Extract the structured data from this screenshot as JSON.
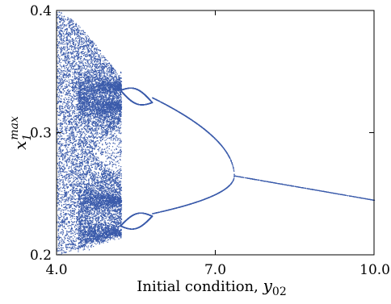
{
  "chart_data": {
    "type": "scatter",
    "title": "",
    "xlabel": {
      "text": "Initial condition, ",
      "symbol": "y",
      "subscript": "02"
    },
    "ylabel": {
      "symbol": "x",
      "subscript": "1",
      "superscript": "max"
    },
    "xlim": [
      4.0,
      10.0
    ],
    "ylim": [
      0.2,
      0.4
    ],
    "x_ticks": [
      4.0,
      7.0,
      10.0
    ],
    "x_tick_labels": [
      "4.0",
      "7.0",
      "10.0"
    ],
    "y_ticks": [
      0.2,
      0.3,
      0.4
    ],
    "y_tick_labels": [
      "0.2",
      "0.3",
      "0.4"
    ],
    "grid": false,
    "legend": "none",
    "marker_color": "#3b5bab",
    "regimes": [
      {
        "name": "chaotic",
        "x_range": [
          4.0,
          5.2
        ],
        "y_range": [
          0.2,
          0.4
        ]
      },
      {
        "name": "period-4",
        "x_range": [
          5.2,
          5.8
        ]
      },
      {
        "name": "period-2",
        "x_range": [
          5.8,
          7.35
        ]
      },
      {
        "name": "period-1",
        "x_range": [
          7.35,
          10.0
        ]
      }
    ],
    "fixed_point_branch": [
      {
        "x": 7.35,
        "y": 0.265
      },
      {
        "x": 10.0,
        "y": 0.245
      }
    ],
    "period2_branches": {
      "upper": [
        {
          "x": 5.8,
          "y": 0.325
        },
        {
          "x": 6.5,
          "y": 0.3
        },
        {
          "x": 7.35,
          "y": 0.265
        }
      ],
      "lower": [
        {
          "x": 5.8,
          "y": 0.232
        },
        {
          "x": 6.5,
          "y": 0.24
        },
        {
          "x": 7.35,
          "y": 0.265
        }
      ]
    }
  }
}
